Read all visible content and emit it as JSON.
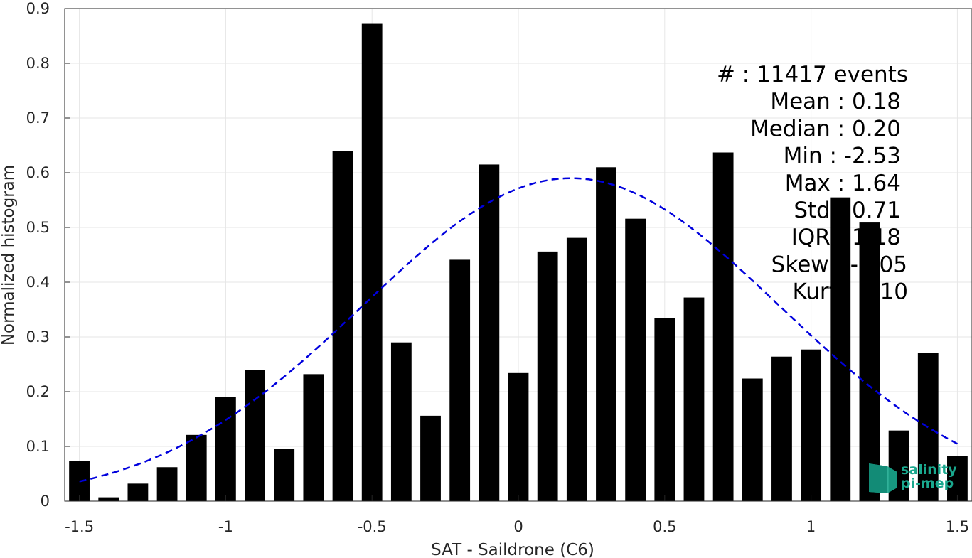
{
  "chart_data": {
    "type": "bar",
    "xlabel": "SAT - Saildrone (C6)",
    "ylabel": "Normalized histogram",
    "xlim": [
      -1.55,
      1.55
    ],
    "ylim": [
      0,
      0.9
    ],
    "bar_width": 0.07,
    "grid": true,
    "xticks": [
      -1.5,
      -1,
      -0.5,
      0,
      0.5,
      1,
      1.5
    ],
    "xtick_labels": [
      "-1.5",
      "-1",
      "-0.5",
      "0",
      "0.5",
      "1",
      "1.5"
    ],
    "yticks": [
      0,
      0.1,
      0.2,
      0.3,
      0.4,
      0.5,
      0.6,
      0.7,
      0.8,
      0.9
    ],
    "ytick_labels": [
      "0",
      "0.1",
      "0.2",
      "0.3",
      "0.4",
      "0.5",
      "0.6",
      "0.7",
      "0.8",
      "0.9"
    ],
    "x": [
      -1.5,
      -1.4,
      -1.3,
      -1.2,
      -1.1,
      -1.0,
      -0.9,
      -0.8,
      -0.7,
      -0.6,
      -0.5,
      -0.4,
      -0.3,
      -0.2,
      -0.1,
      0.0,
      0.1,
      0.2,
      0.3,
      0.4,
      0.5,
      0.6,
      0.7,
      0.8,
      0.9,
      1.0,
      1.1,
      1.2,
      1.3,
      1.4,
      1.5
    ],
    "values": [
      0.073,
      0.007,
      0.032,
      0.062,
      0.121,
      0.19,
      0.239,
      0.095,
      0.232,
      0.639,
      0.872,
      0.29,
      0.156,
      0.441,
      0.615,
      0.234,
      0.456,
      0.481,
      0.61,
      0.516,
      0.334,
      0.372,
      0.637,
      0.224,
      0.264,
      0.277,
      0.555,
      0.509,
      0.129,
      0.271,
      0.082
    ],
    "bar_color": "#000000",
    "fit": {
      "style": "dashed",
      "color": "#0000dd",
      "mean": 0.18,
      "std": 0.71,
      "peak": 0.59
    },
    "stats_placement": "top-right",
    "stats": [
      "#  : 11417 events",
      "Mean : 0.18",
      "Median : 0.20",
      "Min : -2.53",
      "Max : 1.64",
      "Std : 0.71",
      "IQR : 1.18",
      "Skew : -0.05",
      "Kurt : 2.10"
    ],
    "logo": {
      "line1": "salinity",
      "line2": "pi-mep",
      "color": "#1aa88e"
    }
  }
}
